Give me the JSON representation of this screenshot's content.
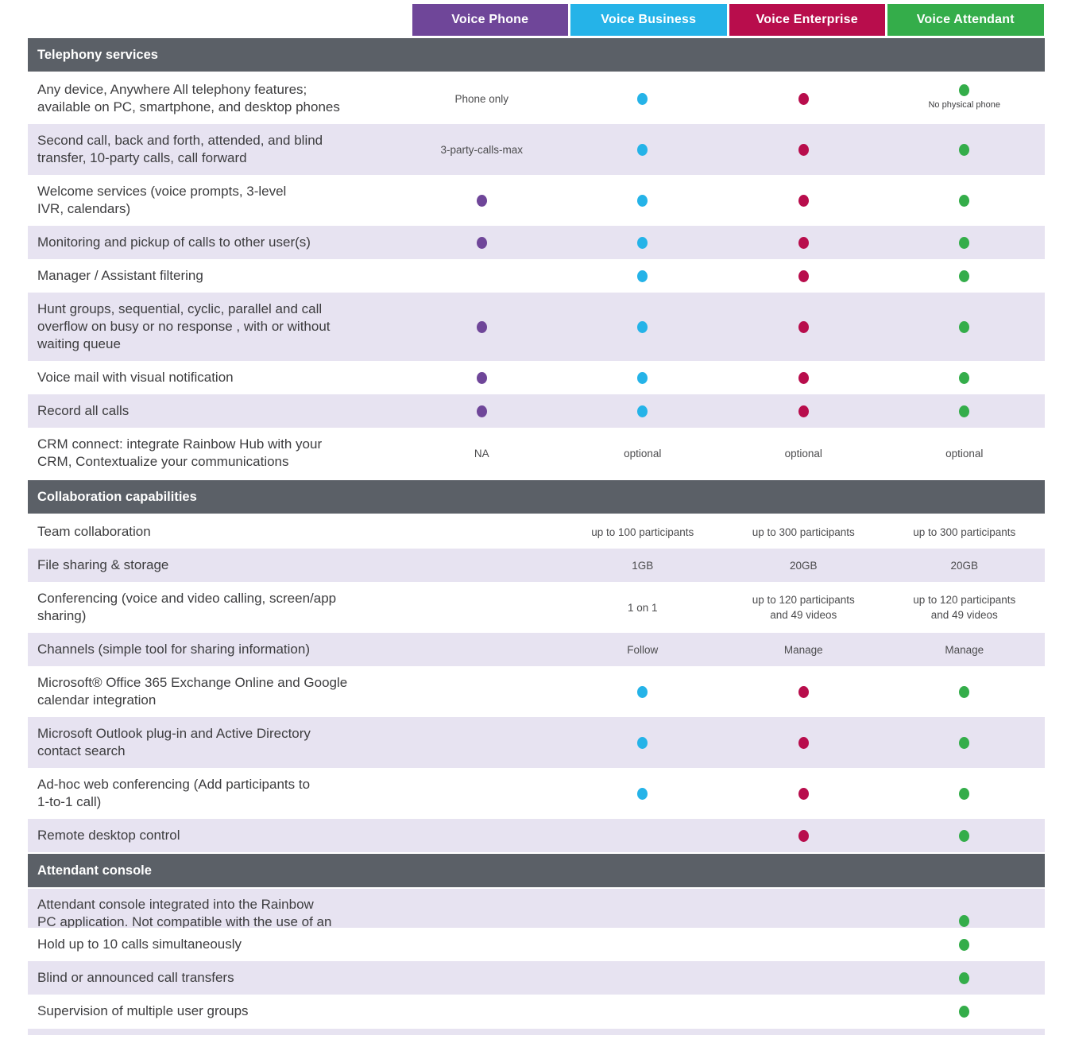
{
  "colors": {
    "section_bar": "#5b6067",
    "row_alternate": "#e7e3f1",
    "feature_text": "#3d3d3f"
  },
  "plans": [
    {
      "label": "Voice Phone",
      "color": "#6f4699"
    },
    {
      "label": "Voice Business",
      "color": "#25b3e8"
    },
    {
      "label": "Voice Enterprise",
      "color": "#b80d4c"
    },
    {
      "label": "Voice Attendant",
      "color": "#34ad4a"
    }
  ],
  "sections": [
    {
      "title": "Telephony services",
      "first_row_shaded": false,
      "rows": [
        {
          "feature": [
            "Any device, Anywhere All telephony features;",
            "available on PC, smartphone, and desktop phones"
          ],
          "cells": [
            {
              "lines": [
                "Phone only"
              ]
            },
            {
              "dot": true
            },
            {
              "dot": true
            },
            {
              "dot": true,
              "note": "No physical phone"
            }
          ]
        },
        {
          "feature": [
            "Second call, back and forth, attended, and blind",
            "transfer, 10-party calls, call forward"
          ],
          "cells": [
            {
              "lines": [
                "3-party-calls-max"
              ]
            },
            {
              "dot": true
            },
            {
              "dot": true
            },
            {
              "dot": true
            }
          ]
        },
        {
          "feature": [
            "Welcome services (voice prompts, 3-level",
            "IVR, calendars)"
          ],
          "cells": [
            {
              "dot": true
            },
            {
              "dot": true
            },
            {
              "dot": true
            },
            {
              "dot": true
            }
          ]
        },
        {
          "feature": [
            "Monitoring and pickup of calls to other user(s)"
          ],
          "cells": [
            {
              "dot": true
            },
            {
              "dot": true
            },
            {
              "dot": true
            },
            {
              "dot": true
            }
          ]
        },
        {
          "feature": [
            "Manager / Assistant filtering"
          ],
          "cells": [
            {},
            {
              "dot": true
            },
            {
              "dot": true
            },
            {
              "dot": true
            }
          ]
        },
        {
          "feature": [
            "Hunt groups, sequential, cyclic, parallel and call",
            "overflow on busy or no response , with or without",
            "waiting queue"
          ],
          "cells": [
            {
              "dot": true
            },
            {
              "dot": true
            },
            {
              "dot": true
            },
            {
              "dot": true
            }
          ]
        },
        {
          "feature": [
            "Voice mail with visual notification"
          ],
          "cells": [
            {
              "dot": true
            },
            {
              "dot": true
            },
            {
              "dot": true
            },
            {
              "dot": true
            }
          ]
        },
        {
          "feature": [
            "Record all calls"
          ],
          "cells": [
            {
              "dot": true
            },
            {
              "dot": true
            },
            {
              "dot": true
            },
            {
              "dot": true
            }
          ]
        },
        {
          "feature": [
            "CRM connect: integrate Rainbow Hub with your",
            "CRM, Contextualize your communications"
          ],
          "cells": [
            {
              "lines": [
                "NA"
              ]
            },
            {
              "lines": [
                "optional"
              ]
            },
            {
              "lines": [
                "optional"
              ]
            },
            {
              "lines": [
                "optional"
              ]
            }
          ]
        }
      ]
    },
    {
      "title": "Collaboration capabilities",
      "first_row_shaded": false,
      "rows": [
        {
          "feature": [
            "Team collaboration"
          ],
          "cells": [
            {},
            {
              "lines": [
                "up to 100 participants"
              ]
            },
            {
              "lines": [
                "up to 300 participants"
              ]
            },
            {
              "lines": [
                "up to 300 participants"
              ]
            }
          ]
        },
        {
          "feature": [
            "File sharing & storage"
          ],
          "cells": [
            {},
            {
              "lines": [
                "1GB"
              ]
            },
            {
              "lines": [
                "20GB"
              ]
            },
            {
              "lines": [
                "20GB"
              ]
            }
          ]
        },
        {
          "feature": [
            "Conferencing (voice and video calling, screen/app",
            "sharing)"
          ],
          "cells": [
            {},
            {
              "lines": [
                "1 on 1"
              ]
            },
            {
              "lines": [
                "up to 120 participants",
                "and 49 videos"
              ]
            },
            {
              "lines": [
                "up to 120 participants",
                "and 49 videos"
              ]
            }
          ]
        },
        {
          "feature": [
            "Channels (simple tool for sharing information)"
          ],
          "cells": [
            {},
            {
              "lines": [
                "Follow"
              ]
            },
            {
              "lines": [
                "Manage"
              ]
            },
            {
              "lines": [
                "Manage"
              ]
            }
          ]
        },
        {
          "feature": [
            "Microsoft® Office 365 Exchange Online and Google",
            "calendar integration"
          ],
          "cells": [
            {},
            {
              "dot": true
            },
            {
              "dot": true
            },
            {
              "dot": true
            }
          ]
        },
        {
          "feature": [
            "Microsoft Outlook plug-in and Active Directory",
            "contact search"
          ],
          "cells": [
            {},
            {
              "dot": true
            },
            {
              "dot": true
            },
            {
              "dot": true
            }
          ]
        },
        {
          "feature": [
            "Ad-hoc web conferencing (Add participants to",
            "1-to-1 call)"
          ],
          "cells": [
            {},
            {
              "dot": true
            },
            {
              "dot": true
            },
            {
              "dot": true
            }
          ]
        },
        {
          "feature": [
            "Remote desktop control"
          ],
          "cells": [
            {},
            {},
            {
              "dot": true
            },
            {
              "dot": true
            }
          ]
        }
      ]
    },
    {
      "title": "Attendant console",
      "first_row_shaded": true,
      "rows": [
        {
          "feature": [
            "Attendant console integrated into the Rainbow",
            "PC application. Not compatible with the use of an"
          ],
          "clipped": true,
          "cells": [
            {},
            {},
            {},
            {
              "dot": true
            }
          ]
        },
        {
          "feature": [
            "Hold up to 10 calls simultaneously"
          ],
          "cells": [
            {},
            {},
            {},
            {
              "dot": true
            }
          ]
        },
        {
          "feature": [
            "Blind or announced call transfers"
          ],
          "cells": [
            {},
            {},
            {},
            {
              "dot": true
            }
          ]
        },
        {
          "feature": [
            "Supervision of multiple user groups"
          ],
          "cells": [
            {},
            {},
            {},
            {
              "dot": true
            }
          ]
        }
      ]
    }
  ]
}
